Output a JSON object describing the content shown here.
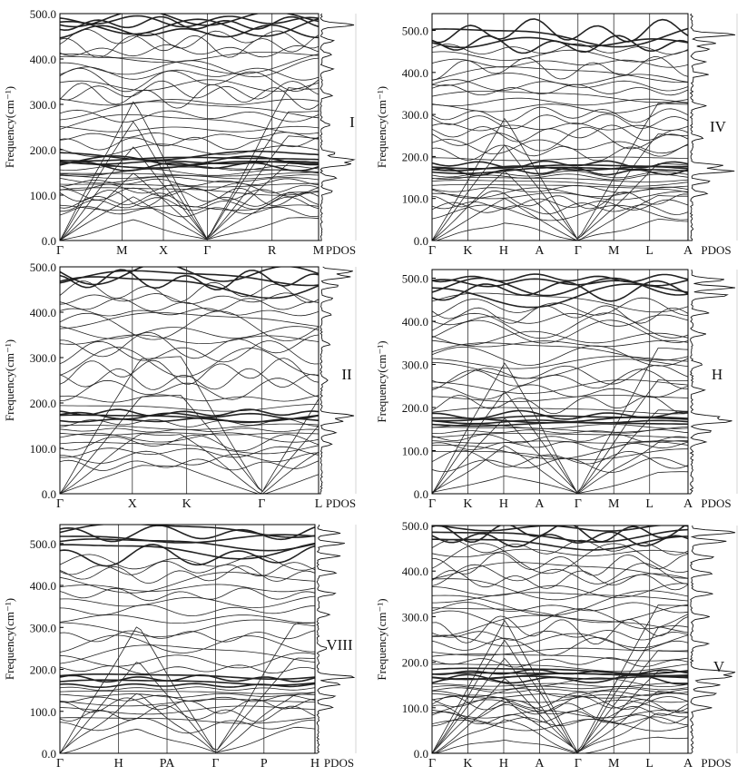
{
  "chart_data": [
    {
      "type": "line",
      "panel_label": "I",
      "ylabel": "Frequency(cm⁻¹)",
      "ylim": [
        0,
        500
      ],
      "yticks": [
        0,
        100,
        200,
        300,
        400,
        500
      ],
      "ytick_labels": [
        "0.0",
        "100.0",
        "200.0",
        "300.0",
        "400.0",
        "500.0"
      ],
      "path": [
        "Γ",
        "M",
        "X",
        "Γ",
        "R",
        "M"
      ],
      "dos_label": "PDOS",
      "band_levels": [
        8,
        18,
        28,
        38,
        48,
        56,
        64,
        72,
        80,
        88,
        96,
        104,
        110,
        116,
        122,
        128,
        134,
        140,
        146,
        150,
        155,
        160,
        164,
        168,
        172,
        176,
        180,
        188,
        200,
        215,
        230,
        245,
        260,
        275,
        290,
        305,
        318,
        330,
        342,
        355,
        368,
        380,
        392,
        405,
        418,
        430,
        445,
        460,
        470,
        478,
        484,
        490
      ],
      "pdos_peaks": [
        [
          108,
          0.35
        ],
        [
          138,
          0.45
        ],
        [
          168,
          0.8
        ],
        [
          178,
          1.0
        ],
        [
          192,
          0.4
        ],
        [
          255,
          0.25
        ],
        [
          320,
          0.3
        ],
        [
          378,
          0.35
        ],
        [
          410,
          0.3
        ],
        [
          440,
          0.35
        ],
        [
          475,
          1.0
        ]
      ]
    },
    {
      "type": "line",
      "panel_label": "IV",
      "ylabel": "Frequency(cm⁻¹)",
      "ylim": [
        0,
        540
      ],
      "yticks": [
        0,
        100,
        200,
        300,
        400,
        500
      ],
      "ytick_labels": [
        "0.0",
        "100.0",
        "200.0",
        "300.0",
        "400.0",
        "500.0"
      ],
      "path": [
        "Γ",
        "K",
        "H",
        "A",
        "Γ",
        "M",
        "L",
        "A"
      ],
      "dos_label": "PDOS",
      "band_levels": [
        8,
        18,
        30,
        42,
        54,
        66,
        76,
        86,
        96,
        106,
        114,
        122,
        130,
        138,
        146,
        152,
        158,
        164,
        168,
        172,
        176,
        182,
        195,
        210,
        225,
        240,
        255,
        270,
        285,
        300,
        315,
        330,
        345,
        358,
        370,
        384,
        398,
        410,
        422,
        440,
        455,
        465,
        472,
        488,
        498
      ],
      "pdos_peaks": [
        [
          112,
          0.35
        ],
        [
          140,
          0.4
        ],
        [
          165,
          0.9
        ],
        [
          178,
          0.7
        ],
        [
          245,
          0.25
        ],
        [
          320,
          0.3
        ],
        [
          395,
          0.35
        ],
        [
          425,
          0.3
        ],
        [
          455,
          0.4
        ],
        [
          470,
          0.5
        ],
        [
          490,
          1.0
        ]
      ]
    },
    {
      "type": "line",
      "panel_label": "II",
      "ylabel": "Frequency(cm⁻¹)",
      "ylim": [
        0,
        500
      ],
      "yticks": [
        0,
        100,
        200,
        300,
        400,
        500
      ],
      "ytick_labels": [
        "0.0",
        "100.0",
        "200.0",
        "300.0",
        "400.0",
        "500.0"
      ],
      "path": [
        "Γ",
        "X",
        "K",
        "Γ",
        "L"
      ],
      "dos_label": "PDOS",
      "band_levels": [
        10,
        22,
        36,
        50,
        64,
        78,
        92,
        104,
        114,
        124,
        132,
        140,
        148,
        156,
        162,
        168,
        172,
        178,
        190,
        210,
        230,
        250,
        270,
        290,
        310,
        325,
        340,
        355,
        370,
        385,
        400,
        415,
        430,
        445,
        460,
        470,
        478,
        486
      ],
      "pdos_peaks": [
        [
          110,
          0.3
        ],
        [
          135,
          0.4
        ],
        [
          160,
          0.6
        ],
        [
          172,
          1.0
        ],
        [
          250,
          0.2
        ],
        [
          330,
          0.25
        ],
        [
          395,
          0.3
        ],
        [
          430,
          0.35
        ],
        [
          458,
          0.5
        ],
        [
          478,
          0.8
        ],
        [
          490,
          0.9
        ]
      ]
    },
    {
      "type": "line",
      "panel_label": "H",
      "ylabel": "Frequency(cm⁻¹)",
      "ylim": [
        0,
        520
      ],
      "yticks": [
        0,
        100,
        200,
        300,
        400,
        500
      ],
      "ytick_labels": [
        "0.0",
        "100.0",
        "200.0",
        "300.0",
        "400.0",
        "500.0"
      ],
      "path": [
        "Γ",
        "K",
        "H",
        "A",
        "Γ",
        "M",
        "L",
        "A",
        "PDOS"
      ],
      "dos_label": "PDOS",
      "band_levels": [
        8,
        20,
        32,
        44,
        56,
        68,
        80,
        92,
        102,
        112,
        120,
        128,
        136,
        144,
        150,
        156,
        162,
        167,
        172,
        176,
        182,
        194,
        208,
        222,
        236,
        250,
        264,
        278,
        292,
        306,
        320,
        334,
        348,
        362,
        376,
        390,
        404,
        418,
        432,
        448,
        462,
        472,
        480,
        490,
        500
      ],
      "pdos_peaks": [
        [
          120,
          0.3
        ],
        [
          145,
          0.45
        ],
        [
          168,
          0.85
        ],
        [
          178,
          0.6
        ],
        [
          240,
          0.25
        ],
        [
          300,
          0.25
        ],
        [
          370,
          0.3
        ],
        [
          420,
          0.35
        ],
        [
          460,
          0.8
        ],
        [
          478,
          1.0
        ],
        [
          496,
          0.7
        ]
      ]
    },
    {
      "type": "line",
      "panel_label": "VIII",
      "ylabel": "Frequency(cm⁻¹)",
      "ylim": [
        0,
        545
      ],
      "yticks": [
        0,
        100,
        200,
        300,
        400,
        500
      ],
      "ytick_labels": [
        "0.0",
        "100.0",
        "200.0",
        "300.0",
        "400.0",
        "500.0"
      ],
      "path": [
        "Γ",
        "H",
        "PA",
        "Γ",
        "P",
        "H"
      ],
      "dos_label": "PDOS",
      "band_levels": [
        10,
        24,
        38,
        52,
        66,
        80,
        94,
        104,
        114,
        122,
        130,
        138,
        146,
        154,
        162,
        170,
        178,
        184,
        200,
        220,
        240,
        260,
        280,
        300,
        320,
        340,
        360,
        378,
        394,
        410,
        425,
        440,
        455,
        470,
        485,
        500,
        512,
        524,
        534
      ],
      "pdos_peaks": [
        [
          110,
          0.4
        ],
        [
          135,
          0.45
        ],
        [
          165,
          0.6
        ],
        [
          182,
          1.0
        ],
        [
          250,
          0.25
        ],
        [
          330,
          0.3
        ],
        [
          380,
          0.45
        ],
        [
          430,
          0.5
        ],
        [
          470,
          0.55
        ],
        [
          500,
          0.7
        ],
        [
          525,
          0.6
        ]
      ]
    },
    {
      "type": "line",
      "panel_label": "V",
      "ylabel": "Frequency(cm⁻¹)",
      "ylim": [
        0,
        500
      ],
      "yticks": [
        0,
        100,
        200,
        300,
        400,
        500
      ],
      "ytick_labels": [
        "0.0",
        "100.0",
        "200.0",
        "300.0",
        "400.0",
        "500.0"
      ],
      "path": [
        "Γ",
        "K",
        "H",
        "A",
        "Γ",
        "M",
        "L",
        "A"
      ],
      "dos_label": "PDOS",
      "band_levels": [
        6,
        14,
        22,
        30,
        38,
        46,
        54,
        62,
        70,
        78,
        86,
        94,
        102,
        108,
        114,
        120,
        126,
        132,
        138,
        144,
        150,
        156,
        162,
        166,
        170,
        174,
        178,
        182,
        190,
        200,
        212,
        224,
        236,
        248,
        260,
        272,
        284,
        296,
        308,
        320,
        332,
        344,
        356,
        368,
        380,
        392,
        404,
        416,
        428,
        440,
        452,
        462,
        470,
        478,
        486,
        494
      ],
      "pdos_peaks": [
        [
          100,
          0.4
        ],
        [
          130,
          0.55
        ],
        [
          150,
          0.6
        ],
        [
          168,
          0.85
        ],
        [
          178,
          1.0
        ],
        [
          240,
          0.35
        ],
        [
          300,
          0.4
        ],
        [
          350,
          0.45
        ],
        [
          395,
          0.45
        ],
        [
          430,
          0.5
        ],
        [
          465,
          0.75
        ],
        [
          485,
          1.0
        ]
      ]
    }
  ]
}
